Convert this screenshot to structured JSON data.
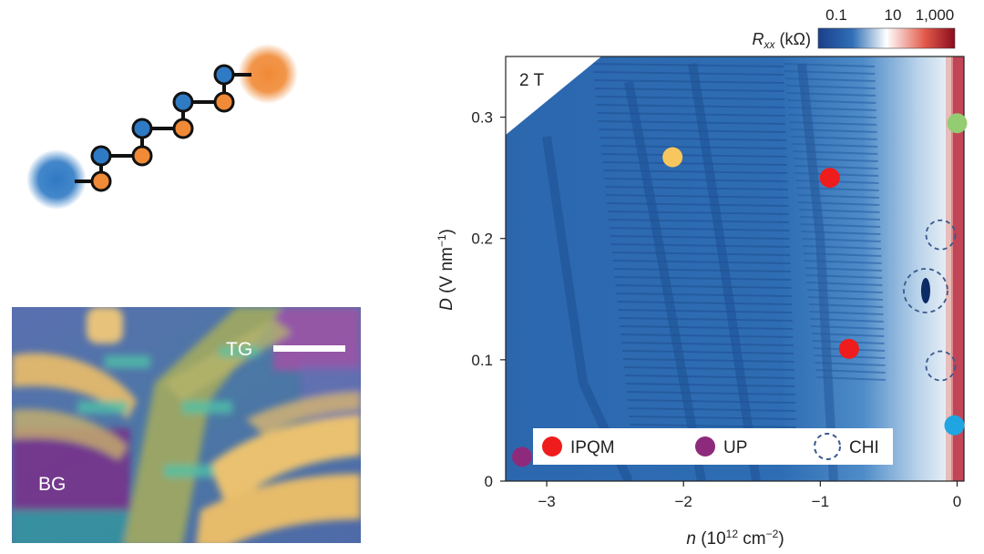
{
  "colorbar": {
    "label_main": "R",
    "label_sub": "xx",
    "label_unit": " (kΩ)",
    "ticks": [
      "0.1",
      "10",
      "1,000"
    ],
    "scale": "log",
    "range": [
      0.1,
      1000
    ],
    "colors": [
      "#1a3f8a",
      "#2f6fb6",
      "#ffffff",
      "#e35a4a",
      "#8a0c1e"
    ]
  },
  "chart_data": {
    "type": "heatmap",
    "annotation": "2 T",
    "xlabel_var": "n",
    "xlabel_unit": " (10",
    "xlabel_exp": "12",
    "xlabel_unit2": " cm",
    "xlabel_exp2": "−2",
    "xlabel_close": ")",
    "ylabel_var": "D",
    "ylabel_unit": " (V nm",
    "ylabel_exp": "−1",
    "ylabel_close": ")",
    "xlim": [
      -3.3,
      0.05
    ],
    "ylim": [
      0,
      0.35
    ],
    "xticks": [
      {
        "v": -3,
        "label": "−3"
      },
      {
        "v": -2,
        "label": "−2"
      },
      {
        "v": -1,
        "label": "−1"
      },
      {
        "v": 0,
        "label": "0"
      }
    ],
    "yticks": [
      {
        "v": 0,
        "label": "0"
      },
      {
        "v": 0.1,
        "label": "0.1"
      },
      {
        "v": 0.2,
        "label": "0.2"
      },
      {
        "v": 0.3,
        "label": "0.3"
      }
    ],
    "points": [
      {
        "x": -2.08,
        "y": 0.267,
        "color": "#f7c65e"
      },
      {
        "x": -0.93,
        "y": 0.25,
        "color": "#ee1c1c"
      },
      {
        "x": -0.79,
        "y": 0.109,
        "color": "#ee1c1c"
      },
      {
        "x": -3.18,
        "y": 0.02,
        "color": "#8e2a7c"
      },
      {
        "x": 0.0,
        "y": 0.295,
        "color": "#94cc72"
      },
      {
        "x": -0.02,
        "y": 0.046,
        "color": "#1fa6e2"
      }
    ],
    "circles": [
      {
        "x": -0.12,
        "y": 0.203,
        "r": 16
      },
      {
        "x": -0.23,
        "y": 0.157,
        "r": 24
      },
      {
        "x": -0.12,
        "y": 0.095,
        "r": 16
      }
    ],
    "legend": [
      {
        "label": "IPQM",
        "marker": "dot",
        "color": "#ee1c1c"
      },
      {
        "label": "UP",
        "marker": "dot",
        "color": "#8e2a7c"
      },
      {
        "label": "CHI",
        "marker": "dashed-circle",
        "color": "#3a5a8c"
      }
    ]
  },
  "micrograph": {
    "label_tg": "TG",
    "label_bg": "BG"
  },
  "chain": {
    "blue": "#2f7ac4",
    "orange": "#f08a36"
  }
}
